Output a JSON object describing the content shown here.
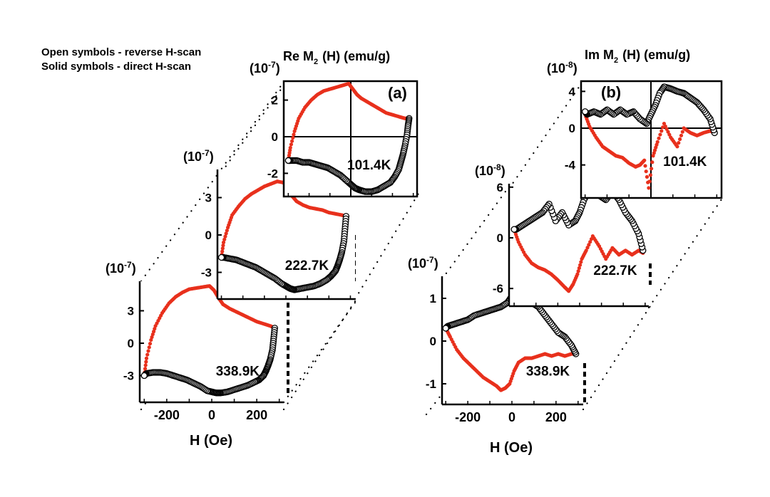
{
  "legend_text": {
    "open": "Open symbols - reverse H-scan",
    "solid": "Solid symbols - direct H-scan"
  },
  "colors": {
    "direct": "#e8301c",
    "reverse": "#000000",
    "axis": "#000000"
  },
  "panel_a": {
    "title_prefix": "Re M",
    "title_sub": "2",
    "title_suffix": "(H)  (emu/g)",
    "label": "(a)",
    "x_title": "H (Oe)"
  },
  "panel_b": {
    "title_prefix": "Im M",
    "title_sub": "2",
    "title_suffix": "(H)  (emu/g)",
    "label": "(b)",
    "x_title": "H (Oe)"
  },
  "chart_data": [
    {
      "type": "line",
      "panel": "a",
      "temperature": "338.9K",
      "scale": "(10",
      "scale_exp": "-7",
      "scale_close": ")",
      "xlim": [
        -320,
        320
      ],
      "ylim": [
        -4.6,
        6.6
      ],
      "x_ticks": [
        -200,
        0,
        200
      ],
      "x_tick_labels": [
        "-200",
        "0",
        "200"
      ],
      "y_ticks": [
        -3,
        0,
        3
      ],
      "y_tick_labels": [
        "-3",
        "0",
        "3"
      ],
      "series": [
        {
          "scan": "direct",
          "marker": "solid",
          "x": [
            -300,
            -290,
            -270,
            -250,
            -220,
            -190,
            -160,
            -130,
            -100,
            -70,
            -40,
            -10,
            10,
            30,
            50,
            80,
            110,
            140,
            170,
            200,
            230,
            260,
            280
          ],
          "y": [
            -3.0,
            -1.4,
            0.3,
            1.6,
            2.8,
            3.7,
            4.3,
            4.7,
            5.0,
            5.1,
            5.2,
            5.3,
            4.9,
            4.2,
            3.6,
            3.2,
            2.9,
            2.6,
            2.3,
            2.0,
            1.8,
            1.6,
            1.4
          ]
        },
        {
          "scan": "reverse",
          "marker": "open",
          "x": [
            280,
            275,
            270,
            260,
            250,
            240,
            230,
            210,
            190,
            160,
            130,
            100,
            70,
            40,
            20,
            0,
            -20,
            -50,
            -80,
            -110,
            -140,
            -170,
            -200,
            -230,
            -260,
            -290,
            -300
          ],
          "y": [
            1.4,
            0.4,
            -0.6,
            -1.5,
            -2.1,
            -2.6,
            -3.0,
            -3.4,
            -3.6,
            -3.9,
            -4.1,
            -4.3,
            -4.5,
            -4.6,
            -4.6,
            -4.5,
            -4.4,
            -4.0,
            -3.7,
            -3.4,
            -3.2,
            -3.0,
            -2.8,
            -2.7,
            -2.7,
            -2.8,
            -3.0
          ]
        }
      ]
    },
    {
      "type": "line",
      "panel": "a",
      "temperature": "222.7K",
      "scale": "(10",
      "scale_exp": "-7",
      "scale_close": ")",
      "xlim": [
        -320,
        320
      ],
      "ylim": [
        -5.2,
        5.2
      ],
      "y_ticks": [
        -3,
        0,
        3
      ],
      "y_tick_labels": [
        "-3",
        "0",
        "3"
      ],
      "series": [
        {
          "scan": "direct",
          "marker": "solid",
          "x": [
            -300,
            -290,
            -270,
            -250,
            -220,
            -190,
            -160,
            -130,
            -100,
            -70,
            -40,
            -10,
            10,
            30,
            50,
            80,
            110,
            140,
            170,
            200,
            230,
            260,
            280
          ],
          "y": [
            -1.8,
            -0.6,
            0.6,
            1.6,
            2.3,
            2.9,
            3.3,
            3.6,
            3.9,
            4.1,
            4.3,
            4.2,
            3.6,
            3.1,
            2.7,
            2.4,
            2.2,
            2.1,
            2.0,
            1.8,
            1.7,
            1.6,
            1.5
          ]
        },
        {
          "scan": "reverse",
          "marker": "open",
          "x": [
            280,
            275,
            270,
            260,
            250,
            240,
            230,
            210,
            190,
            160,
            130,
            100,
            70,
            40,
            20,
            0,
            -20,
            -50,
            -80,
            -110,
            -140,
            -170,
            -200,
            -230,
            -260,
            -290,
            -300
          ],
          "y": [
            1.5,
            0.5,
            -0.5,
            -1.4,
            -2.0,
            -2.5,
            -2.9,
            -3.3,
            -3.6,
            -3.9,
            -4.1,
            -4.2,
            -4.3,
            -4.4,
            -4.3,
            -4.1,
            -3.9,
            -3.5,
            -3.2,
            -2.9,
            -2.6,
            -2.4,
            -2.2,
            -2.0,
            -1.9,
            -1.8,
            -1.8
          ]
        }
      ]
    },
    {
      "type": "line",
      "panel": "a",
      "temperature": "101.4K",
      "scale": "(10",
      "scale_exp": "-7",
      "scale_close": ")",
      "xlim": [
        -320,
        320
      ],
      "ylim": [
        -3.3,
        3.0
      ],
      "y_ticks": [
        -2,
        0,
        2
      ],
      "y_tick_labels": [
        "-2",
        "0",
        "2"
      ],
      "series": [
        {
          "scan": "direct",
          "marker": "solid",
          "x": [
            -300,
            -290,
            -270,
            -250,
            -220,
            -190,
            -160,
            -130,
            -100,
            -70,
            -40,
            -10,
            10,
            30,
            50,
            80,
            110,
            140,
            170,
            200,
            230,
            260,
            280
          ],
          "y": [
            -1.3,
            -0.6,
            0.3,
            1.0,
            1.6,
            2.0,
            2.3,
            2.5,
            2.6,
            2.7,
            2.8,
            2.9,
            2.6,
            2.3,
            2.1,
            1.9,
            1.7,
            1.5,
            1.3,
            1.2,
            1.1,
            1.0,
            1.0
          ]
        },
        {
          "scan": "reverse",
          "marker": "open",
          "x": [
            280,
            275,
            270,
            260,
            250,
            240,
            230,
            210,
            190,
            160,
            130,
            100,
            70,
            40,
            20,
            0,
            -20,
            -50,
            -80,
            -110,
            -140,
            -170,
            -200,
            -230,
            -260,
            -290,
            -300
          ],
          "y": [
            1.0,
            0.6,
            0.1,
            -0.5,
            -1.0,
            -1.4,
            -1.8,
            -2.2,
            -2.5,
            -2.7,
            -2.9,
            -3.0,
            -3.0,
            -2.9,
            -2.8,
            -2.6,
            -2.4,
            -2.1,
            -1.9,
            -1.7,
            -1.6,
            -1.5,
            -1.4,
            -1.4,
            -1.3,
            -1.3,
            -1.3
          ]
        }
      ]
    },
    {
      "type": "line",
      "panel": "b",
      "temperature": "338.9K",
      "scale": "(10",
      "scale_exp": "-7",
      "scale_close": ")",
      "xlim": [
        -320,
        320
      ],
      "ylim": [
        -1.3,
        1.7
      ],
      "x_ticks": [
        -200,
        0,
        200
      ],
      "x_tick_labels": [
        "-200",
        "0",
        "200"
      ],
      "y_ticks": [
        -1,
        0,
        1
      ],
      "y_tick_labels": [
        "-1",
        "0",
        "1"
      ],
      "series": [
        {
          "scan": "direct",
          "marker": "solid",
          "x": [
            -300,
            -280,
            -250,
            -220,
            -190,
            -160,
            -130,
            -100,
            -70,
            -50,
            -30,
            -10,
            10,
            30,
            60,
            90,
            120,
            150,
            180,
            210,
            240,
            270,
            290
          ],
          "y": [
            0.3,
            0.1,
            -0.2,
            -0.4,
            -0.55,
            -0.7,
            -0.85,
            -0.95,
            -1.05,
            -1.15,
            -1.1,
            -1.0,
            -0.7,
            -0.5,
            -0.4,
            -0.4,
            -0.35,
            -0.3,
            -0.35,
            -0.3,
            -0.35,
            -0.3,
            -0.3
          ]
        },
        {
          "scan": "reverse",
          "marker": "open",
          "x": [
            290,
            270,
            240,
            210,
            180,
            150,
            120,
            90,
            60,
            40,
            20,
            0,
            -20,
            -50,
            -80,
            -110,
            -140,
            -170,
            -200,
            -230,
            -260,
            -290,
            -300
          ],
          "y": [
            -0.3,
            -0.1,
            0.1,
            0.2,
            0.4,
            0.6,
            0.8,
            0.9,
            1.0,
            1.05,
            1.1,
            1.05,
            0.9,
            0.8,
            0.75,
            0.7,
            0.65,
            0.6,
            0.5,
            0.45,
            0.4,
            0.35,
            0.3
          ]
        }
      ]
    },
    {
      "type": "line",
      "panel": "b",
      "temperature": "222.7K",
      "scale": "(10",
      "scale_exp": "-8",
      "scale_close": ")",
      "xlim": [
        -320,
        320
      ],
      "ylim": [
        -7.5,
        7.0
      ],
      "y_ticks": [
        -6,
        0,
        6
      ],
      "y_tick_labels": [
        "-6",
        "0",
        "6"
      ],
      "series": [
        {
          "scan": "direct",
          "marker": "solid",
          "x": [
            -300,
            -280,
            -250,
            -220,
            -190,
            -160,
            -130,
            -100,
            -70,
            -50,
            -30,
            -10,
            10,
            30,
            60,
            90,
            120,
            150,
            180,
            210,
            240,
            270,
            290
          ],
          "y": [
            1.0,
            -0.5,
            -2.0,
            -3.0,
            -3.5,
            -3.8,
            -4.3,
            -5.0,
            -5.8,
            -6.3,
            -5.5,
            -4.3,
            -2.5,
            -1.5,
            0.2,
            -1.0,
            -2.5,
            -1.2,
            -2.0,
            -1.5,
            -2.0,
            -1.5,
            -1.8
          ]
        },
        {
          "scan": "reverse",
          "marker": "open",
          "x": [
            290,
            270,
            240,
            210,
            180,
            150,
            120,
            90,
            60,
            40,
            20,
            0,
            -20,
            -50,
            -80,
            -110,
            -140,
            -170,
            -200,
            -230,
            -260,
            -290,
            -300
          ],
          "y": [
            -1.5,
            0.5,
            2.0,
            3.0,
            4.5,
            5.5,
            4.5,
            5.0,
            6.0,
            5.5,
            4.5,
            3.0,
            2.0,
            1.5,
            3.0,
            2.0,
            4.0,
            3.0,
            2.5,
            2.0,
            1.5,
            1.0,
            1.0
          ]
        }
      ]
    },
    {
      "type": "line",
      "panel": "b",
      "temperature": "101.4K",
      "scale": "(10",
      "scale_exp": "-8",
      "scale_close": ")",
      "xlim": [
        -320,
        320
      ],
      "ylim": [
        -7.3,
        5.4
      ],
      "y_ticks": [
        -4,
        0,
        4
      ],
      "y_tick_labels": [
        "-4",
        "0",
        "4"
      ],
      "series": [
        {
          "scan": "direct",
          "marker": "solid",
          "x": [
            -300,
            -280,
            -250,
            -220,
            -190,
            -160,
            -130,
            -100,
            -70,
            -50,
            -30,
            -10,
            10,
            30,
            60,
            90,
            120,
            150,
            180,
            210,
            240,
            270,
            290
          ],
          "y": [
            1.5,
            0.2,
            -1.0,
            -2.0,
            -2.5,
            -3.0,
            -3.2,
            -3.8,
            -4.2,
            -4.0,
            -3.5,
            -6.5,
            -3.0,
            -1.5,
            0.5,
            -1.0,
            -2.0,
            0.0,
            -0.5,
            -0.8,
            -0.5,
            -0.3,
            -0.5
          ]
        },
        {
          "scan": "reverse",
          "marker": "open",
          "x": [
            290,
            270,
            240,
            210,
            180,
            150,
            120,
            90,
            60,
            40,
            20,
            0,
            -20,
            -50,
            -80,
            -110,
            -140,
            -170,
            -200,
            -230,
            -260,
            -290,
            -300
          ],
          "y": [
            -0.5,
            1.0,
            2.0,
            2.8,
            3.3,
            3.8,
            4.0,
            4.3,
            4.5,
            3.8,
            2.5,
            1.5,
            0.5,
            1.0,
            1.8,
            1.5,
            2.0,
            1.5,
            2.0,
            1.5,
            1.8,
            1.5,
            1.8
          ]
        }
      ]
    }
  ]
}
